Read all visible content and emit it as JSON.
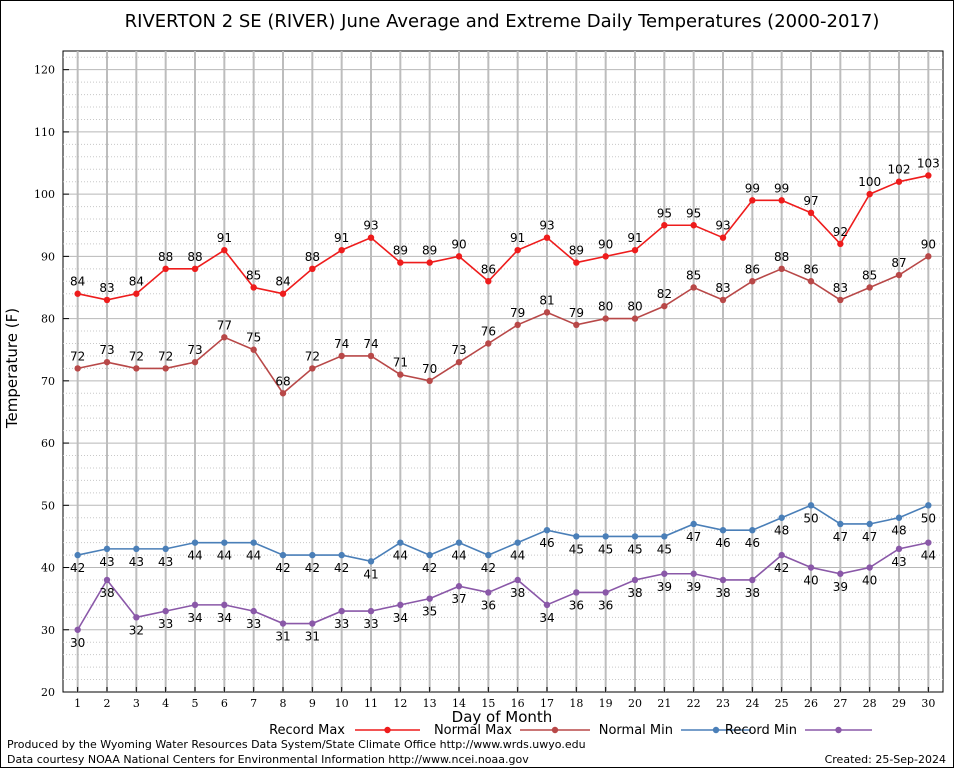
{
  "chart_data": {
    "type": "line",
    "title": "RIVERTON 2 SE (RIVER) June Average and Extreme Daily Temperatures (2000-2017)",
    "xlabel": "Day of Month",
    "ylabel": "Temperature (F)",
    "ylim": [
      20,
      123
    ],
    "yticks": [
      20,
      30,
      40,
      50,
      60,
      70,
      80,
      90,
      100,
      110,
      120
    ],
    "xlim": [
      0.5,
      30.5
    ],
    "x": [
      1,
      2,
      3,
      4,
      5,
      6,
      7,
      8,
      9,
      10,
      11,
      12,
      13,
      14,
      15,
      16,
      17,
      18,
      19,
      20,
      21,
      22,
      23,
      24,
      25,
      26,
      27,
      28,
      29,
      30
    ],
    "grid": true,
    "legend_position": "bottom",
    "series": [
      {
        "name": "Record Max",
        "color": "#ee1c1c",
        "label_pos": "above",
        "values": [
          84,
          83,
          84,
          88,
          88,
          91,
          85,
          84,
          88,
          91,
          93,
          89,
          89,
          90,
          86,
          91,
          93,
          89,
          90,
          91,
          95,
          95,
          93,
          99,
          99,
          97,
          92,
          100,
          102,
          103
        ]
      },
      {
        "name": "Normal Max",
        "color": "#b84848",
        "label_pos": "above",
        "values": [
          72,
          73,
          72,
          72,
          73,
          77,
          75,
          68,
          72,
          74,
          74,
          71,
          70,
          73,
          76,
          79,
          81,
          79,
          80,
          80,
          82,
          85,
          83,
          86,
          88,
          86,
          83,
          85,
          87,
          90
        ]
      },
      {
        "name": "Normal Min",
        "color": "#4a7fb8",
        "label_pos": "below",
        "values": [
          42,
          43,
          43,
          43,
          44,
          44,
          44,
          42,
          42,
          42,
          41,
          44,
          42,
          44,
          42,
          44,
          46,
          45,
          45,
          45,
          45,
          47,
          46,
          46,
          48,
          50,
          47,
          47,
          48,
          50
        ]
      },
      {
        "name": "Record Min",
        "color": "#8a58a8",
        "label_pos": "below",
        "values": [
          30,
          38,
          32,
          33,
          34,
          34,
          33,
          31,
          31,
          33,
          33,
          34,
          35,
          37,
          36,
          38,
          34,
          36,
          36,
          38,
          39,
          39,
          38,
          38,
          42,
          40,
          39,
          40,
          43,
          44
        ]
      }
    ]
  },
  "footer": {
    "line1": "Produced by the Wyoming Water Resources Data System/State Climate Office http://www.wrds.uwyo.edu",
    "line2": "Data courtesy NOAA National Centers for Environmental Information http://www.ncei.noaa.gov",
    "created": "Created:  25-Sep-2024"
  }
}
